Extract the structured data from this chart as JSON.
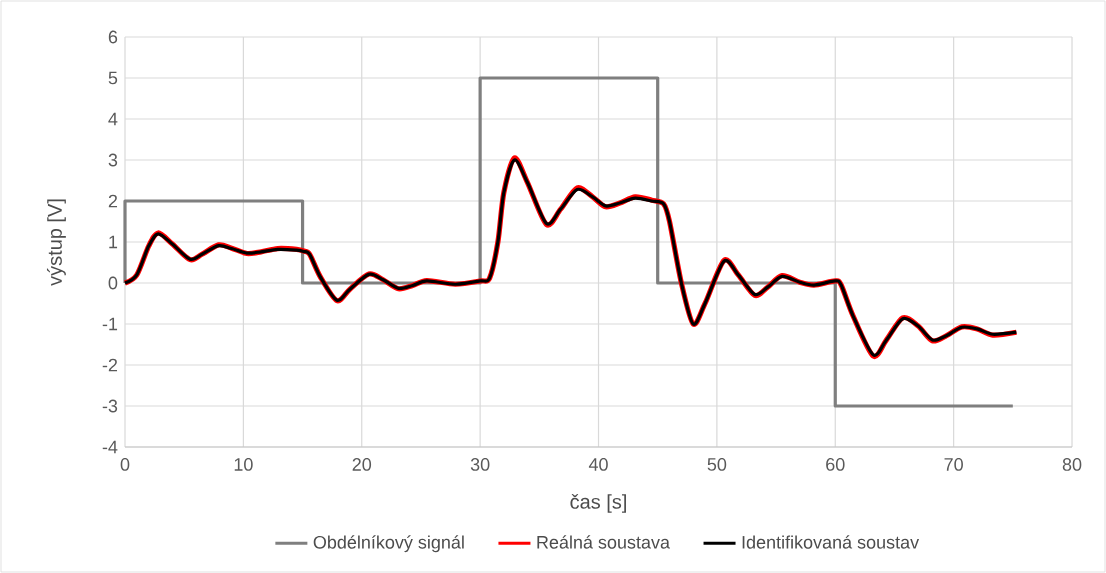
{
  "chart_data": {
    "type": "line",
    "xlabel": "čas [s]",
    "ylabel": "výstup [V]",
    "xlim": [
      0,
      80
    ],
    "ylim": [
      -4,
      6
    ],
    "xticks": [
      0,
      10,
      20,
      30,
      40,
      50,
      60,
      70,
      80
    ],
    "yticks": [
      -4,
      -3,
      -2,
      -1,
      0,
      1,
      2,
      3,
      4,
      5,
      6
    ],
    "grid": true,
    "legend": "bottom",
    "marker": "none",
    "line_style": "solid",
    "series": [
      {
        "name": "Obdélníkový signál",
        "color": "#7f7f7f",
        "x": [
          0,
          0,
          15,
          15,
          30,
          30,
          45,
          45,
          60,
          60,
          75
        ],
        "values": [
          0,
          2,
          2,
          0,
          0,
          5,
          5,
          0,
          0,
          -3,
          -3
        ]
      },
      {
        "name": "Reálná soustava",
        "color": "#ff0000",
        "x": [
          0,
          1,
          2,
          2.8,
          4,
          5.5,
          6.5,
          7.9,
          9,
          10.3,
          11.5,
          12.9,
          14.5,
          15.1,
          15.6,
          16.5,
          17.9,
          19,
          20.6,
          21.8,
          23.1,
          24.3,
          25.5,
          27.9,
          30,
          30.8,
          31.5,
          32,
          32.9,
          34,
          35.6,
          36.8,
          38.2,
          39.5,
          40.6,
          41.8,
          43.1,
          44.5,
          45.5,
          46,
          47,
          48,
          49,
          50.6,
          51.8,
          53.2,
          54.3,
          55.5,
          57,
          58.2,
          60,
          60.5,
          61.5,
          63.2,
          64.3,
          65.7,
          67,
          68.2,
          69.3,
          70.7,
          72,
          73.3,
          75.3
        ],
        "values": [
          0,
          0.2,
          0.9,
          1.22,
          0.95,
          0.57,
          0.7,
          0.93,
          0.85,
          0.72,
          0.76,
          0.84,
          0.82,
          0.78,
          0.7,
          0.15,
          -0.43,
          -0.15,
          0.22,
          0.08,
          -0.14,
          -0.06,
          0.06,
          -0.03,
          0.05,
          0.12,
          1.0,
          2.2,
          3.05,
          2.45,
          1.43,
          1.8,
          2.32,
          2.1,
          1.86,
          1.95,
          2.1,
          2.02,
          1.93,
          1.5,
          0,
          -1.0,
          -0.5,
          0.55,
          0.2,
          -0.3,
          -0.1,
          0.18,
          0.02,
          -0.05,
          0.05,
          -0.05,
          -0.8,
          -1.78,
          -1.4,
          -0.85,
          -1.05,
          -1.41,
          -1.3,
          -1.07,
          -1.12,
          -1.27,
          -1.2
        ]
      },
      {
        "name": "Identifikovaná soustav",
        "color": "#000000",
        "x": [
          0,
          1,
          2,
          2.8,
          4,
          5.5,
          6.5,
          7.9,
          9,
          10.3,
          11.5,
          12.9,
          14.5,
          15.1,
          15.6,
          16.5,
          17.9,
          19,
          20.6,
          21.8,
          23.1,
          24.3,
          25.5,
          27.9,
          30,
          30.8,
          31.5,
          32,
          32.9,
          34,
          35.6,
          36.8,
          38.2,
          39.5,
          40.6,
          41.8,
          43.1,
          44.5,
          45.5,
          46,
          47,
          48,
          49,
          50.6,
          51.8,
          53.2,
          54.3,
          55.5,
          57,
          58.2,
          60,
          60.5,
          61.5,
          63.2,
          64.3,
          65.7,
          67,
          68.2,
          69.3,
          70.7,
          72,
          73.3,
          75.3
        ],
        "values": [
          0,
          0.2,
          0.9,
          1.2,
          0.95,
          0.58,
          0.7,
          0.91,
          0.84,
          0.73,
          0.76,
          0.82,
          0.8,
          0.77,
          0.7,
          0.15,
          -0.42,
          -0.15,
          0.21,
          0.08,
          -0.13,
          -0.06,
          0.05,
          -0.03,
          0.05,
          0.12,
          1.0,
          2.2,
          3.0,
          2.45,
          1.45,
          1.8,
          2.28,
          2.1,
          1.88,
          1.95,
          2.07,
          2.0,
          1.93,
          1.5,
          0,
          -1.0,
          -0.5,
          0.53,
          0.2,
          -0.28,
          -0.1,
          0.16,
          0.02,
          -0.05,
          0.05,
          -0.05,
          -0.8,
          -1.75,
          -1.4,
          -0.87,
          -1.05,
          -1.39,
          -1.3,
          -1.08,
          -1.12,
          -1.25,
          -1.2
        ]
      }
    ]
  }
}
